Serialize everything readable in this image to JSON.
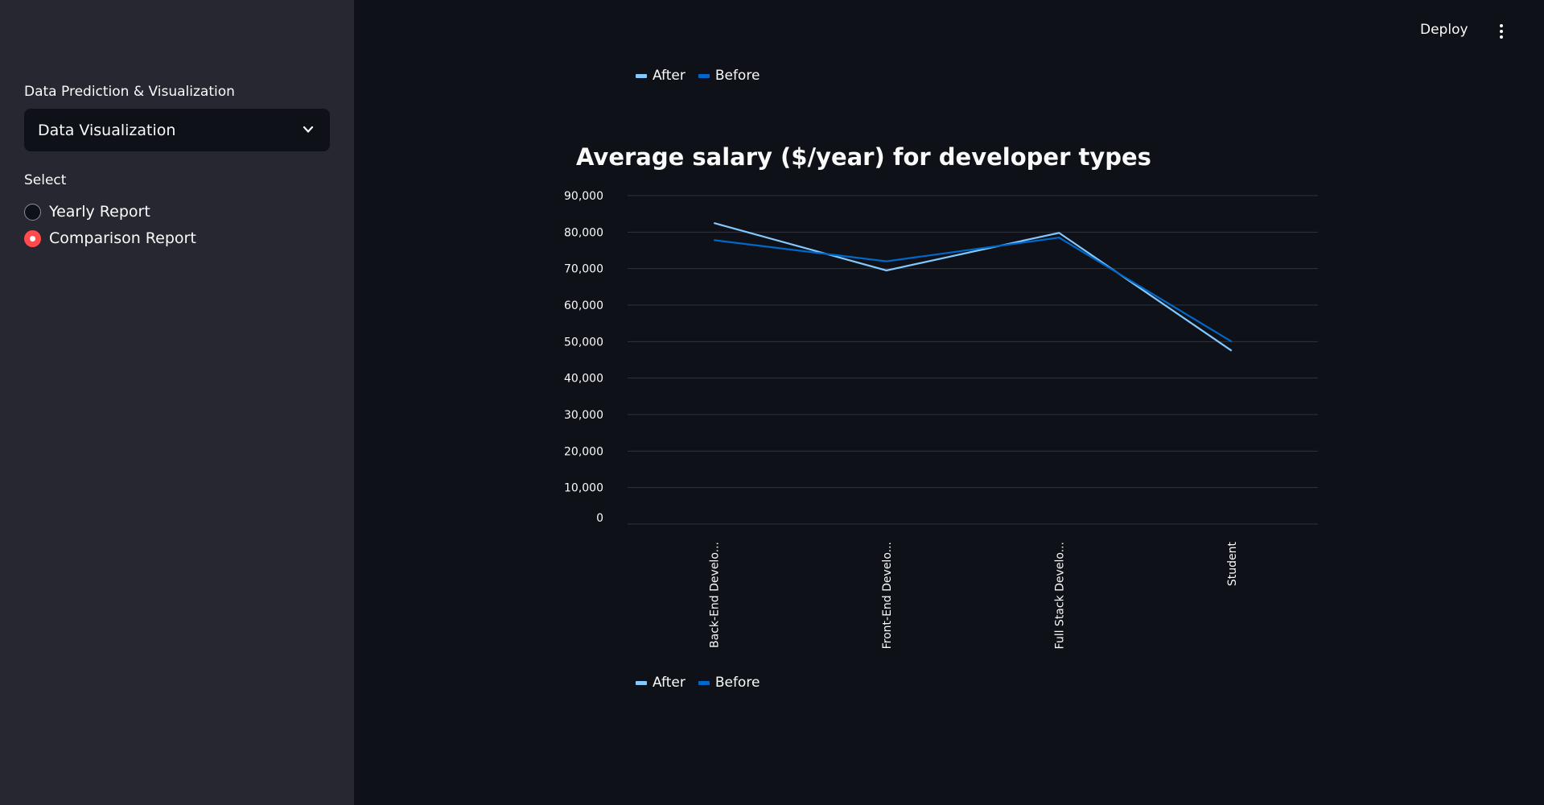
{
  "sidebar": {
    "mode_label": "Data Prediction & Visualization",
    "mode_value": "Data Visualization",
    "select_label": "Select",
    "options": [
      {
        "label": "Yearly Report",
        "checked": false
      },
      {
        "label": "Comparison Report",
        "checked": true
      }
    ]
  },
  "toolbar": {
    "deploy_label": "Deploy",
    "menu_icon": "more-vertical-icon"
  },
  "chart_data": {
    "type": "line",
    "title": "Average salary ($/year) for developer types",
    "categories": [
      "Back-End Develo...",
      "Front-End Develo...",
      "Full Stack Develo...",
      "Student"
    ],
    "series": [
      {
        "name": "After",
        "color": "#83c9ff",
        "values": [
          82500,
          69500,
          79800,
          47500
        ]
      },
      {
        "name": "Before",
        "color": "#0068c9",
        "values": [
          77800,
          72000,
          78500,
          50000
        ]
      }
    ],
    "ylim": [
      0,
      90000
    ],
    "yticks": [
      "90,000",
      "80,000",
      "70,000",
      "60,000",
      "50,000",
      "40,000",
      "30,000",
      "20,000",
      "10,000",
      "0"
    ],
    "xlabel": "",
    "ylabel": "",
    "legend_position": "top-left and bottom-left",
    "grid": true
  }
}
